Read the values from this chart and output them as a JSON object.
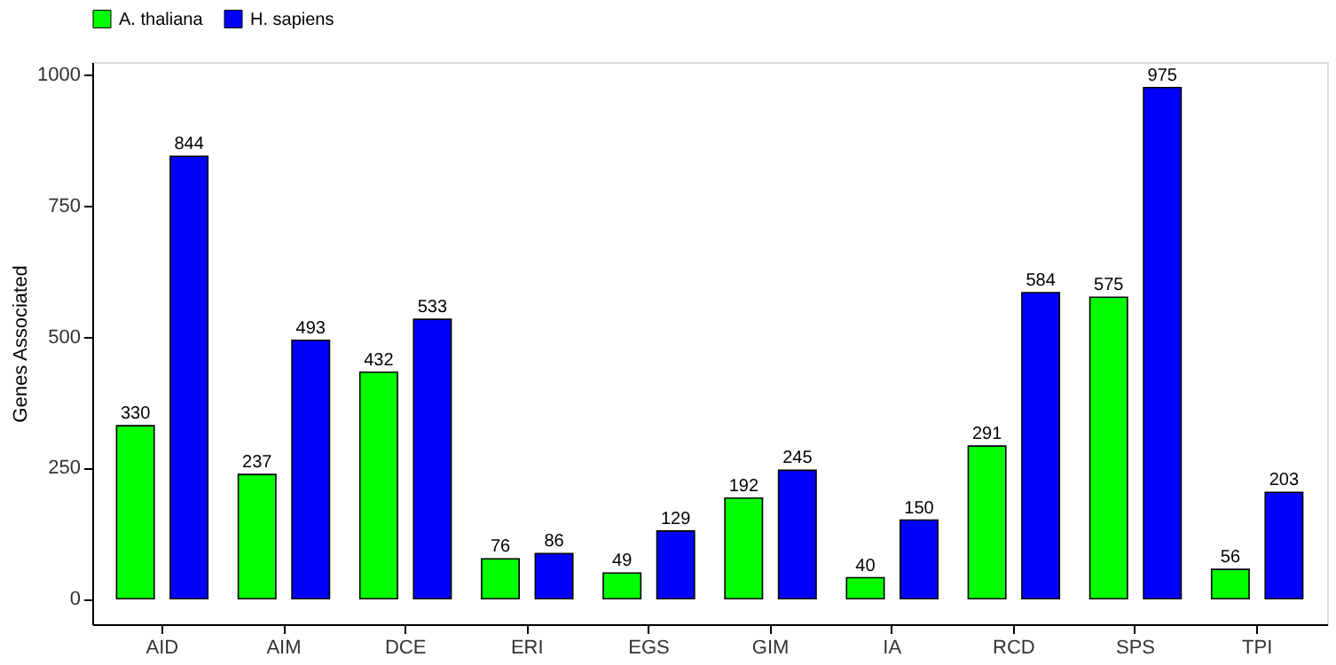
{
  "chart_data": {
    "type": "bar",
    "ylabel": "Genes Associated",
    "categories": [
      "AID",
      "AIM",
      "DCE",
      "ERI",
      "EGS",
      "GIM",
      "IA",
      "RCD",
      "SPS",
      "TPI"
    ],
    "series": [
      {
        "name": "A. thaliana",
        "color": "#00ff00",
        "values": [
          330,
          237,
          432,
          76,
          49,
          192,
          40,
          291,
          575,
          56
        ]
      },
      {
        "name": "H. sapiens",
        "color": "#0000ff",
        "values": [
          844,
          493,
          533,
          86,
          129,
          245,
          150,
          584,
          975,
          203
        ]
      }
    ],
    "ylim": [
      -48.75,
      1023.75
    ],
    "yticks": [
      0,
      250,
      500,
      750,
      1000
    ],
    "data_labels": true,
    "grid": false,
    "legend": "top"
  }
}
